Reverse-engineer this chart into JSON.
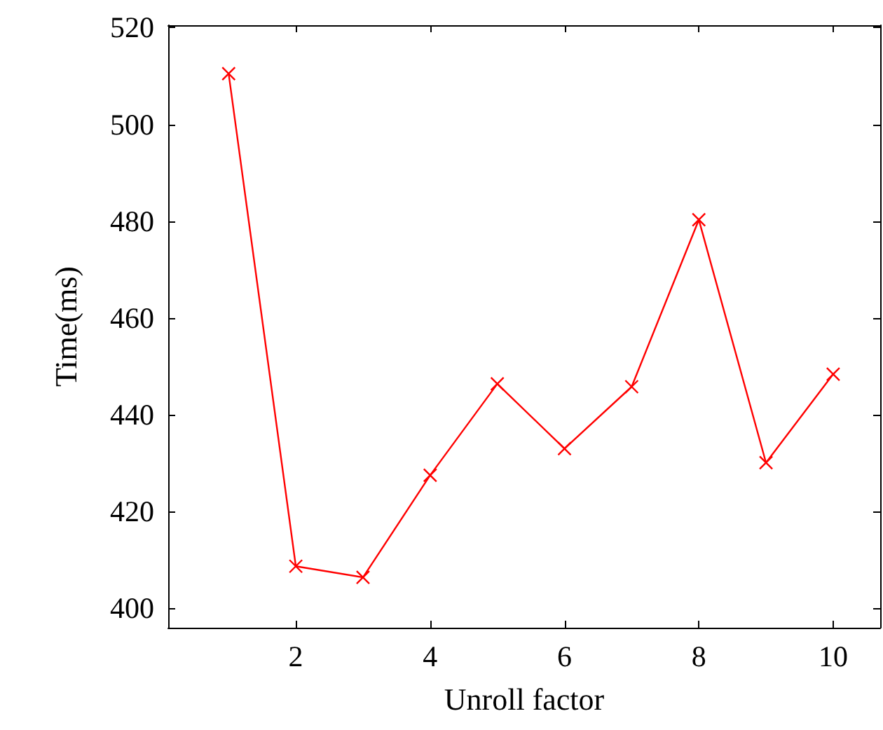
{
  "chart_data": {
    "type": "line",
    "xlabel": "Unroll factor",
    "ylabel": "Time(ms)",
    "x": [
      1,
      2,
      3,
      4,
      5,
      6,
      7,
      8,
      9,
      10
    ],
    "series": [
      {
        "color": "#ff0000",
        "values": [
          510.5,
          408.7,
          406.4,
          427.5,
          446.4,
          433,
          445.8,
          480.3,
          430.1,
          448.4
        ]
      }
    ],
    "xlim": [
      0.1,
      10.7
    ],
    "xticks": [
      2,
      4,
      6,
      8,
      10
    ],
    "ylim": [
      396,
      520.5
    ],
    "yticks": [
      400,
      420,
      440,
      460,
      480,
      500,
      520
    ],
    "grid": false,
    "marker": "cross",
    "line_style": "solid"
  }
}
